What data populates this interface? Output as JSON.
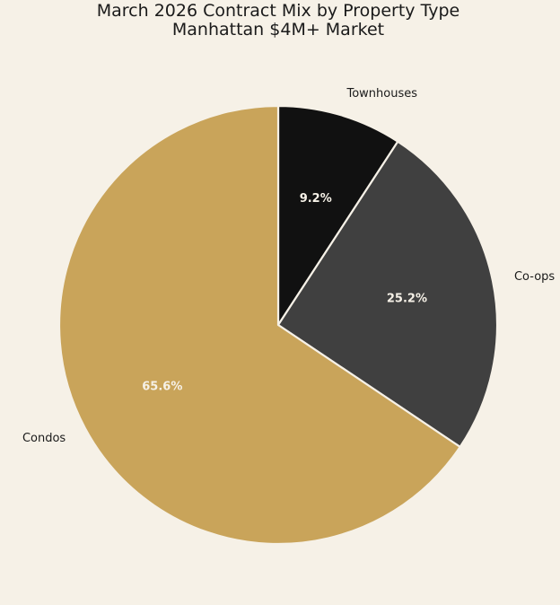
{
  "chart_data": {
    "type": "pie",
    "title": "March 2026 Contract Mix by Property Type",
    "subtitle": "Manhattan $4M+ Market",
    "slices": [
      {
        "label": "Townhouses",
        "value": 9.2,
        "pct_label": "9.2%",
        "color": "#111111"
      },
      {
        "label": "Co-ops",
        "value": 25.2,
        "pct_label": "25.2%",
        "color": "#404040"
      },
      {
        "label": "Condos",
        "value": 65.6,
        "pct_label": "65.6%",
        "color": "#C9A45A"
      }
    ],
    "start_angle_deg": 90,
    "direction": "clockwise",
    "edge_color": "#F6F1E7",
    "background": "#F6F1E7"
  }
}
